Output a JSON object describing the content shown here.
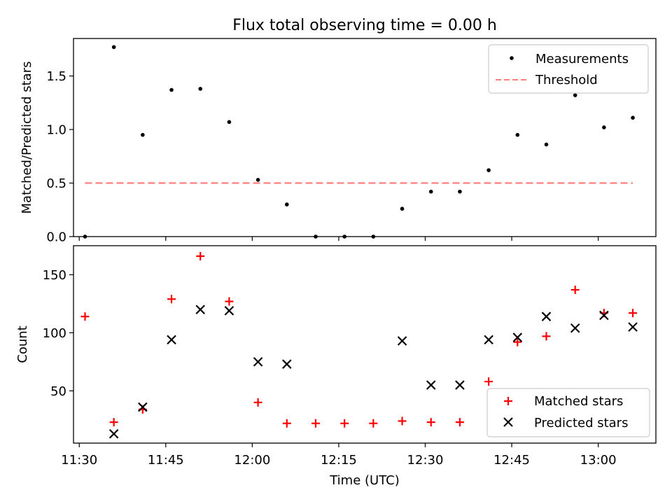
{
  "figure": {
    "title": "Flux total observing time = 0.00 h"
  },
  "chart_data": [
    {
      "type": "scatter",
      "panel": "top",
      "title": "Flux total observing time = 0.00 h",
      "xlabel": "",
      "ylabel": "Matched/Predicted stars",
      "ylim": [
        0,
        1.85
      ],
      "yticks": [
        0.0,
        0.5,
        1.0,
        1.5
      ],
      "ytick_labels": [
        "0.0",
        "0.5",
        "1.0",
        "1.5"
      ],
      "legend_position": "top-right",
      "grid": false,
      "x": [
        "11:31",
        "11:36",
        "11:41",
        "11:46",
        "11:51",
        "11:56",
        "12:01",
        "12:06",
        "12:11",
        "12:16",
        "12:21",
        "12:26",
        "12:31",
        "12:36",
        "12:41",
        "12:46",
        "12:51",
        "12:56",
        "13:01",
        "13:06"
      ],
      "series": [
        {
          "name": "Measurements",
          "kind": "scatter",
          "marker": "dot",
          "color": "#000000",
          "y": [
            0.0,
            1.77,
            0.95,
            1.37,
            1.38,
            1.07,
            0.53,
            0.3,
            0.0,
            0.0,
            0.0,
            0.26,
            0.42,
            0.42,
            0.62,
            0.95,
            0.86,
            1.32,
            1.02,
            1.11
          ]
        },
        {
          "name": "Threshold",
          "kind": "line",
          "style": "dashed",
          "color": "#ff7f7f",
          "x": [
            "11:31",
            "13:06"
          ],
          "y": [
            0.5,
            0.5
          ]
        }
      ]
    },
    {
      "type": "scatter",
      "panel": "bottom",
      "xlabel": "Time (UTC)",
      "ylabel": "Count",
      "xlim": [
        "11:29",
        "13:10"
      ],
      "xticks": [
        "11:30",
        "11:45",
        "12:00",
        "12:15",
        "12:30",
        "12:45",
        "13:00"
      ],
      "ylim": [
        5,
        175
      ],
      "yticks": [
        50,
        100,
        150
      ],
      "ytick_labels": [
        "50",
        "100",
        "150"
      ],
      "legend_position": "bottom-right",
      "grid": false,
      "x": [
        "11:31",
        "11:36",
        "11:41",
        "11:46",
        "11:51",
        "11:56",
        "12:01",
        "12:06",
        "12:11",
        "12:16",
        "12:21",
        "12:26",
        "12:31",
        "12:36",
        "12:41",
        "12:46",
        "12:51",
        "12:56",
        "13:01",
        "13:06"
      ],
      "series": [
        {
          "name": "Matched stars",
          "marker": "plus",
          "color": "#ff0000",
          "y": [
            114,
            23,
            34,
            129,
            166,
            127,
            40,
            22,
            22,
            22,
            22,
            24,
            23,
            23,
            58,
            92,
            97,
            137,
            117,
            117
          ]
        },
        {
          "name": "Predicted stars",
          "marker": "x",
          "color": "#000000",
          "y": [
            null,
            13,
            36,
            94,
            120,
            119,
            75,
            73,
            null,
            null,
            null,
            93,
            55,
            55,
            94,
            96,
            114,
            104,
            115,
            105
          ]
        }
      ]
    }
  ]
}
